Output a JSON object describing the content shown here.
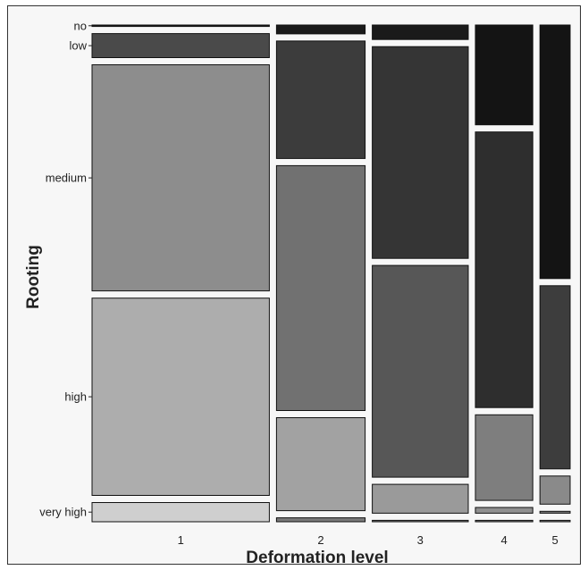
{
  "chart_data": {
    "type": "mosaic",
    "xlabel": "Deformation level",
    "ylabel": "Rooting",
    "x_categories": [
      "1",
      "2",
      "3",
      "4",
      "5"
    ],
    "x_widths": [
      0.34,
      0.17,
      0.184,
      0.11,
      0.058
    ],
    "y_categories": [
      "no",
      "low",
      "medium",
      "high",
      "very high"
    ],
    "proportions": {
      "1": [
        0.003,
        0.05,
        0.47,
        0.41,
        0.04
      ],
      "2": [
        0.018,
        0.24,
        0.5,
        0.19,
        0.008
      ],
      "3": [
        0.03,
        0.44,
        0.44,
        0.06,
        0.003
      ],
      "4": [
        0.21,
        0.58,
        0.18,
        0.012,
        0.003
      ],
      "5": [
        0.54,
        0.39,
        0.06,
        0.004,
        0.003
      ]
    },
    "colors": {
      "1": [
        "#1a1a1a",
        "#4a4a4a",
        "#8d8d8d",
        "#adadad",
        "#cfcfcf"
      ],
      "2": [
        "#1a1a1a",
        "#3c3c3c",
        "#717171",
        "#a2a2a2",
        "#7a7a7a"
      ],
      "3": [
        "#1a1a1a",
        "#353535",
        "#575757",
        "#9a9a9a",
        "#7a7a7a"
      ],
      "4": [
        "#141414",
        "#2e2e2e",
        "#7e7e7e",
        "#8f8f8f",
        "#7a7a7a"
      ],
      "5": [
        "#141414",
        "#3d3d3d",
        "#8a8a8a",
        "#7a7a7a",
        "#7a7a7a"
      ]
    }
  }
}
